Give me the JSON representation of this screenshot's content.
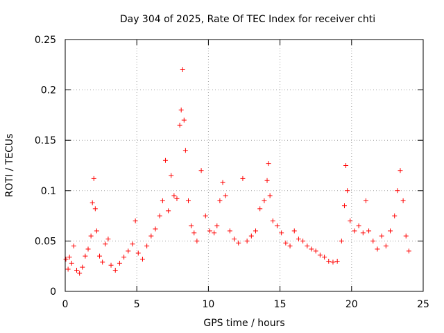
{
  "chart_data": {
    "type": "scatter",
    "title": "Day 304 of 2025, Rate Of TEC Index for receiver chti",
    "xlabel": "GPS time / hours",
    "ylabel": "ROTI / TECUs",
    "xlim": [
      0,
      25
    ],
    "ylim": [
      0,
      0.25
    ],
    "xticks": [
      0,
      5,
      10,
      15,
      20,
      25
    ],
    "xtick_labels": [
      "0",
      "5",
      "10",
      "15",
      "20",
      "25"
    ],
    "yticks": [
      0,
      0.05,
      0.1,
      0.15,
      0.2,
      0.25
    ],
    "ytick_labels": [
      "0",
      "0.05",
      "0.1",
      "0.15",
      "0.2",
      "0.25"
    ],
    "grid": true,
    "marker": "+",
    "series": [
      {
        "name": "ROTI",
        "color": "#ff0000",
        "x": [
          0.05,
          0.2,
          0.3,
          0.45,
          0.6,
          0.8,
          1.0,
          1.2,
          1.4,
          1.6,
          1.8,
          1.9,
          2.0,
          2.1,
          2.2,
          2.4,
          2.6,
          2.8,
          3.0,
          3.2,
          3.5,
          3.8,
          4.1,
          4.4,
          4.7,
          4.9,
          5.1,
          5.4,
          5.7,
          6.0,
          6.3,
          6.6,
          6.8,
          7.0,
          7.2,
          7.4,
          7.6,
          7.8,
          8.0,
          8.1,
          8.2,
          8.3,
          8.4,
          8.6,
          8.8,
          9.0,
          9.2,
          9.5,
          9.8,
          10.1,
          10.4,
          10.6,
          10.8,
          11.0,
          11.2,
          11.5,
          11.8,
          12.1,
          12.4,
          12.7,
          13.0,
          13.3,
          13.6,
          13.9,
          14.1,
          14.2,
          14.3,
          14.5,
          14.8,
          15.1,
          15.4,
          15.7,
          16.0,
          16.3,
          16.6,
          16.9,
          17.2,
          17.5,
          17.8,
          18.1,
          18.4,
          18.7,
          19.0,
          19.3,
          19.5,
          19.6,
          19.7,
          19.9,
          20.2,
          20.5,
          20.8,
          21.0,
          21.2,
          21.5,
          21.8,
          22.1,
          22.4,
          22.7,
          23.0,
          23.2,
          23.4,
          23.6,
          23.8,
          24.0
        ],
        "y": [
          0.032,
          0.022,
          0.034,
          0.028,
          0.045,
          0.021,
          0.018,
          0.024,
          0.035,
          0.042,
          0.055,
          0.088,
          0.112,
          0.082,
          0.06,
          0.035,
          0.029,
          0.047,
          0.052,
          0.026,
          0.021,
          0.028,
          0.034,
          0.04,
          0.047,
          0.07,
          0.038,
          0.032,
          0.045,
          0.055,
          0.062,
          0.075,
          0.09,
          0.13,
          0.08,
          0.115,
          0.095,
          0.092,
          0.165,
          0.18,
          0.22,
          0.17,
          0.14,
          0.09,
          0.065,
          0.058,
          0.05,
          0.12,
          0.075,
          0.06,
          0.058,
          0.065,
          0.09,
          0.108,
          0.095,
          0.06,
          0.052,
          0.048,
          0.112,
          0.05,
          0.055,
          0.06,
          0.082,
          0.09,
          0.11,
          0.127,
          0.095,
          0.07,
          0.065,
          0.058,
          0.048,
          0.045,
          0.06,
          0.052,
          0.05,
          0.045,
          0.042,
          0.04,
          0.036,
          0.034,
          0.03,
          0.029,
          0.03,
          0.05,
          0.085,
          0.125,
          0.1,
          0.07,
          0.06,
          0.065,
          0.058,
          0.09,
          0.06,
          0.05,
          0.042,
          0.055,
          0.045,
          0.06,
          0.075,
          0.1,
          0.12,
          0.09,
          0.055,
          0.04
        ]
      }
    ]
  }
}
